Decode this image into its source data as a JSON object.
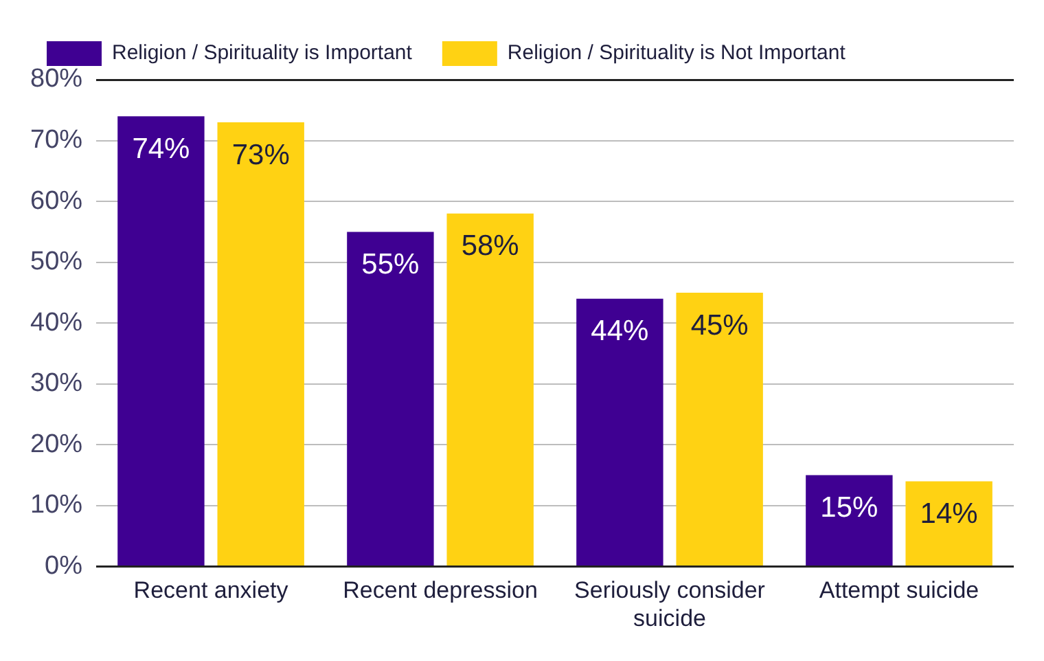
{
  "chart_data": {
    "type": "bar",
    "categories": [
      "Recent anxiety",
      "Recent depression",
      "Seriously consider suicide",
      "Attempt suicide"
    ],
    "series": [
      {
        "name": "Religion / Spirituality is Important",
        "color": "#3f0092",
        "values": [
          74,
          55,
          44,
          15
        ],
        "value_labels": [
          "74%",
          "55%",
          "44%",
          "15%"
        ]
      },
      {
        "name": "Religion / Spirituality is Not Important",
        "color": "#ffd213",
        "values": [
          73,
          58,
          45,
          14
        ],
        "value_labels": [
          "73%",
          "58%",
          "45%",
          "14%"
        ]
      }
    ],
    "ylim": [
      0,
      80
    ],
    "yticks": [
      {
        "value": 0,
        "label": "0%"
      },
      {
        "value": 10,
        "label": "10%"
      },
      {
        "value": 20,
        "label": "20%"
      },
      {
        "value": 30,
        "label": "30%"
      },
      {
        "value": 40,
        "label": "40%"
      },
      {
        "value": 50,
        "label": "50%"
      },
      {
        "value": 60,
        "label": "60%"
      },
      {
        "value": 70,
        "label": "70%"
      },
      {
        "value": 80,
        "label": "80%"
      }
    ],
    "grid": "y",
    "legend": "top left"
  }
}
